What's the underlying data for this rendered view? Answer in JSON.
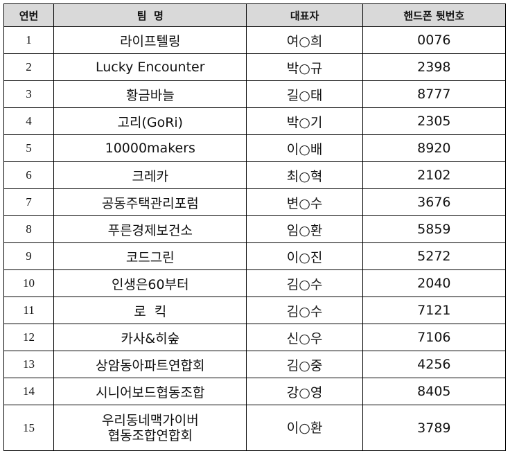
{
  "headers": [
    "연번",
    "팀  명",
    "대표자",
    "핸드폰 뒷번호"
  ],
  "header_bg": "#d9d9d9",
  "rows": [
    {
      "no": "1",
      "team": "라이프텔링",
      "rep": "여○희",
      "phone": "0076"
    },
    {
      "no": "2",
      "team": "Lucky Encounter",
      "rep": "박○규",
      "phone": "2398"
    },
    {
      "no": "3",
      "team": "황금바늘",
      "rep": "길○태",
      "phone": "8777"
    },
    {
      "no": "4",
      "team": "고리(GoRi)",
      "rep": "박○기",
      "phone": "2305"
    },
    {
      "no": "5",
      "team": "10000makers",
      "rep": "이○배",
      "phone": "8920"
    },
    {
      "no": "6",
      "team": "크레카",
      "rep": "최○혁",
      "phone": "2102"
    },
    {
      "no": "7",
      "team": "공동주택관리포럼",
      "rep": "변○수",
      "phone": "3676"
    },
    {
      "no": "8",
      "team": "푸른경제보건소",
      "rep": "임○환",
      "phone": "5859"
    },
    {
      "no": "9",
      "team": "코드그린",
      "rep": "이○진",
      "phone": "5272"
    },
    {
      "no": "10",
      "team": "인생은60부터",
      "rep": "김○수",
      "phone": "2040"
    },
    {
      "no": "11",
      "team": "로  킥",
      "rep": "김○수",
      "phone": "7121"
    },
    {
      "no": "12",
      "team": "카사&히숲",
      "rep": "신○우",
      "phone": "7106"
    },
    {
      "no": "13",
      "team": "상암동아파트연합회",
      "rep": "김○중",
      "phone": "4256"
    },
    {
      "no": "14",
      "team": "시니어보드협동조합",
      "rep": "강○영",
      "phone": "8405"
    },
    {
      "no": "15",
      "team_line1": "우리동네맥가이버",
      "team_line2": "협동조합연합회",
      "rep": "이○환",
      "phone": "3789"
    }
  ]
}
